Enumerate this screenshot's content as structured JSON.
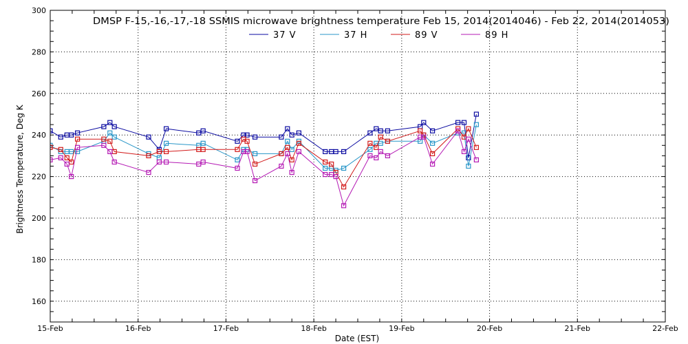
{
  "chart_data": {
    "type": "line",
    "title": "DMSP F-15,-16,-17,-18 SSMIS microwave brightness temperature Feb 15, 2014(2014046) - Feb 22, 2014(2014053)",
    "xlabel": "Date (EST)",
    "ylabel": "Brightness Temperature, Deg K",
    "xlim": [
      15,
      22
    ],
    "ylim": [
      150,
      300
    ],
    "xticks": [
      15,
      16,
      17,
      18,
      19,
      20,
      21,
      22
    ],
    "xtick_labels": [
      "15-Feb",
      "16-Feb",
      "17-Feb",
      "18-Feb",
      "19-Feb",
      "20-Feb",
      "21-Feb",
      "22-Feb"
    ],
    "yticks": [
      160,
      180,
      200,
      220,
      240,
      260,
      280,
      300
    ],
    "ytick_labels": [
      "160",
      "180",
      "200",
      "220",
      "240",
      "260",
      "280",
      "300"
    ],
    "grid": true,
    "legend_position": "top",
    "x": [
      15.0,
      15.12,
      15.19,
      15.24,
      15.31,
      15.61,
      15.68,
      15.73,
      16.12,
      16.24,
      16.32,
      16.69,
      16.74,
      17.13,
      17.2,
      17.24,
      17.33,
      17.63,
      17.7,
      17.75,
      17.83,
      18.13,
      18.2,
      18.25,
      18.34,
      18.64,
      18.71,
      18.76,
      18.84,
      19.21,
      19.25,
      19.35,
      19.64,
      19.71,
      19.76,
      19.85
    ],
    "series": [
      {
        "name": "37 V",
        "color": "#0A0AA0",
        "values": [
          242,
          239,
          240,
          240,
          241,
          244,
          246,
          244,
          239,
          233,
          243,
          241,
          242,
          237,
          240,
          240,
          239,
          239,
          243,
          240,
          241,
          232,
          232,
          232,
          232,
          241,
          243,
          242,
          242,
          244,
          246,
          242,
          246,
          246,
          229,
          250
        ]
      },
      {
        "name": "37 H",
        "color": "#2896C8",
        "values": [
          235,
          232,
          232,
          232,
          232,
          237,
          241,
          239,
          231,
          229,
          236,
          235,
          236,
          228,
          233,
          233,
          231,
          231,
          237,
          233,
          237,
          224,
          224,
          223,
          224,
          233,
          236,
          236,
          237,
          237,
          240,
          236,
          241,
          241,
          225,
          245
        ]
      },
      {
        "name": "89 V",
        "color": "#D21919",
        "values": [
          234,
          233,
          229,
          227,
          238,
          238,
          237,
          232,
          230,
          232,
          232,
          233,
          233,
          233,
          238,
          237,
          226,
          231,
          234,
          228,
          236,
          227,
          226,
          222,
          215,
          236,
          234,
          239,
          237,
          242,
          240,
          231,
          243,
          239,
          243,
          234
        ]
      },
      {
        "name": "89 H",
        "color": "#B419B4",
        "values": [
          228,
          229,
          226,
          220,
          234,
          235,
          232,
          227,
          222,
          227,
          227,
          226,
          227,
          224,
          232,
          232,
          218,
          225,
          231,
          222,
          232,
          221,
          221,
          220,
          206,
          230,
          229,
          232,
          230,
          239,
          239,
          226,
          242,
          232,
          238,
          228
        ]
      }
    ]
  }
}
